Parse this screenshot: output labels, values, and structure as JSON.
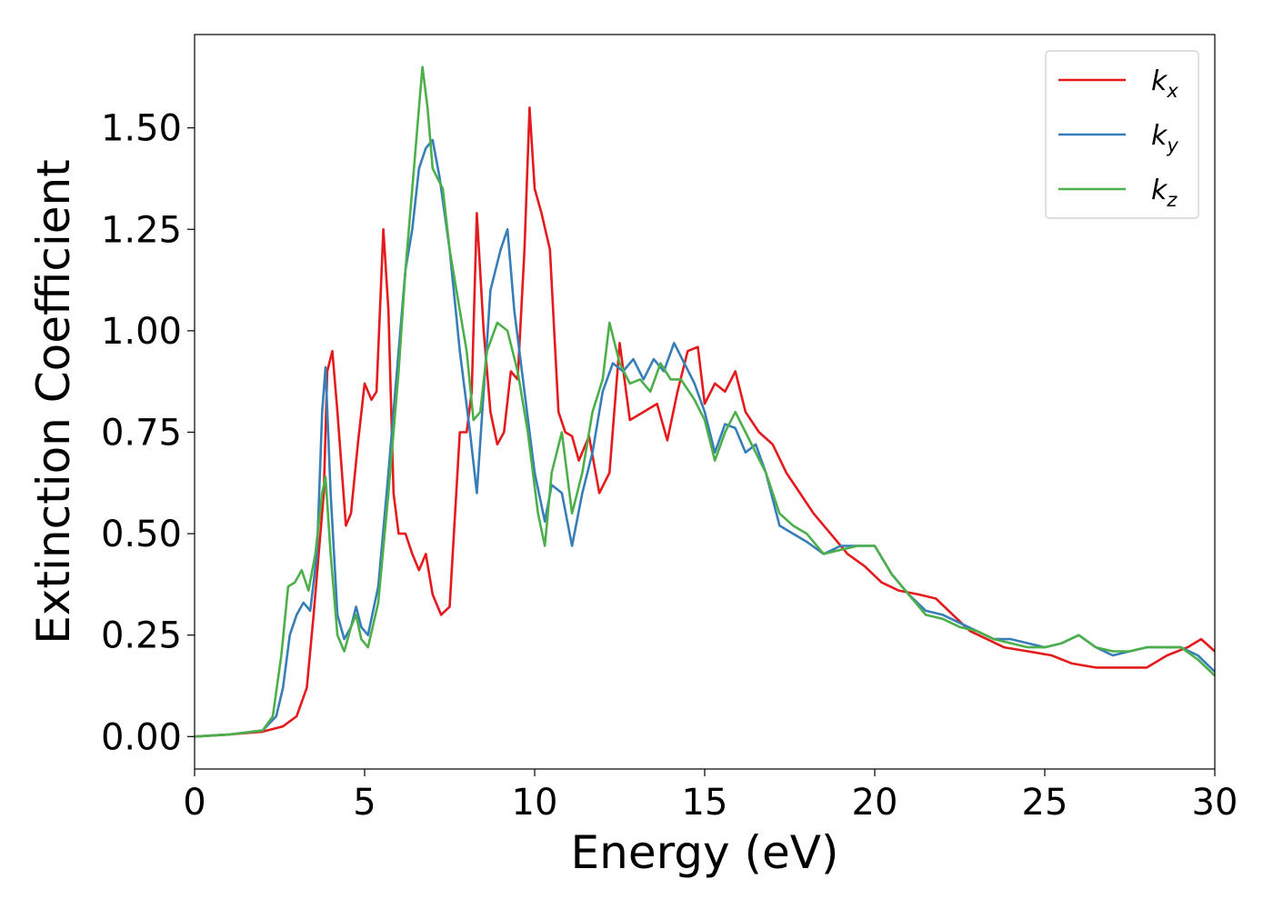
{
  "chart_data": {
    "type": "line",
    "title": "",
    "xlabel": "Energy (eV)",
    "ylabel": "Extinction Coefficient",
    "xlim": [
      0,
      30
    ],
    "ylim": [
      -0.08,
      1.73
    ],
    "xticks": [
      "0",
      "5",
      "10",
      "15",
      "20",
      "25",
      "30"
    ],
    "yticks": [
      "0.00",
      "0.25",
      "0.50",
      "0.75",
      "1.00",
      "1.25",
      "1.50"
    ],
    "grid": false,
    "legend_position": "top-right",
    "series": [
      {
        "name": "k_x",
        "label_base": "k",
        "label_sub": "x",
        "color": "#e41a1c",
        "points": [
          [
            0,
            0
          ],
          [
            1,
            0.005
          ],
          [
            2,
            0.012
          ],
          [
            2.6,
            0.025
          ],
          [
            3.0,
            0.05
          ],
          [
            3.3,
            0.12
          ],
          [
            3.5,
            0.3
          ],
          [
            3.8,
            0.6
          ],
          [
            3.9,
            0.9
          ],
          [
            4.05,
            0.95
          ],
          [
            4.2,
            0.8
          ],
          [
            4.45,
            0.52
          ],
          [
            4.6,
            0.55
          ],
          [
            4.8,
            0.72
          ],
          [
            5.0,
            0.87
          ],
          [
            5.2,
            0.83
          ],
          [
            5.35,
            0.85
          ],
          [
            5.55,
            1.25
          ],
          [
            5.7,
            1.05
          ],
          [
            5.85,
            0.6
          ],
          [
            6.0,
            0.5
          ],
          [
            6.2,
            0.5
          ],
          [
            6.4,
            0.45
          ],
          [
            6.6,
            0.41
          ],
          [
            6.8,
            0.45
          ],
          [
            7.0,
            0.35
          ],
          [
            7.25,
            0.3
          ],
          [
            7.5,
            0.32
          ],
          [
            7.8,
            0.75
          ],
          [
            8.0,
            0.75
          ],
          [
            8.15,
            0.85
          ],
          [
            8.3,
            1.29
          ],
          [
            8.5,
            1.0
          ],
          [
            8.7,
            0.8
          ],
          [
            8.9,
            0.72
          ],
          [
            9.1,
            0.75
          ],
          [
            9.3,
            0.9
          ],
          [
            9.5,
            0.88
          ],
          [
            9.7,
            1.2
          ],
          [
            9.85,
            1.55
          ],
          [
            10.0,
            1.35
          ],
          [
            10.2,
            1.29
          ],
          [
            10.45,
            1.2
          ],
          [
            10.7,
            0.8
          ],
          [
            10.9,
            0.75
          ],
          [
            11.1,
            0.74
          ],
          [
            11.3,
            0.68
          ],
          [
            11.6,
            0.74
          ],
          [
            11.9,
            0.6
          ],
          [
            12.2,
            0.65
          ],
          [
            12.5,
            0.97
          ],
          [
            12.8,
            0.78
          ],
          [
            13.2,
            0.8
          ],
          [
            13.6,
            0.82
          ],
          [
            13.9,
            0.73
          ],
          [
            14.2,
            0.85
          ],
          [
            14.5,
            0.95
          ],
          [
            14.8,
            0.96
          ],
          [
            15.0,
            0.82
          ],
          [
            15.3,
            0.87
          ],
          [
            15.6,
            0.85
          ],
          [
            15.9,
            0.9
          ],
          [
            16.2,
            0.8
          ],
          [
            16.6,
            0.75
          ],
          [
            17.0,
            0.72
          ],
          [
            17.4,
            0.65
          ],
          [
            17.8,
            0.6
          ],
          [
            18.2,
            0.55
          ],
          [
            18.7,
            0.5
          ],
          [
            19.2,
            0.45
          ],
          [
            19.7,
            0.42
          ],
          [
            20.2,
            0.38
          ],
          [
            20.7,
            0.36
          ],
          [
            21.3,
            0.35
          ],
          [
            21.8,
            0.34
          ],
          [
            22.3,
            0.3
          ],
          [
            22.8,
            0.26
          ],
          [
            23.3,
            0.24
          ],
          [
            23.8,
            0.22
          ],
          [
            24.5,
            0.21
          ],
          [
            25.2,
            0.2
          ],
          [
            25.8,
            0.18
          ],
          [
            26.5,
            0.17
          ],
          [
            27.2,
            0.17
          ],
          [
            28.0,
            0.17
          ],
          [
            28.6,
            0.2
          ],
          [
            29.2,
            0.22
          ],
          [
            29.6,
            0.24
          ],
          [
            30,
            0.21
          ]
        ]
      },
      {
        "name": "k_y",
        "label_base": "k",
        "label_sub": "y",
        "color": "#377eb8",
        "points": [
          [
            0,
            0
          ],
          [
            1,
            0.005
          ],
          [
            2,
            0.015
          ],
          [
            2.4,
            0.05
          ],
          [
            2.6,
            0.12
          ],
          [
            2.8,
            0.25
          ],
          [
            3.0,
            0.3
          ],
          [
            3.2,
            0.33
          ],
          [
            3.4,
            0.31
          ],
          [
            3.6,
            0.45
          ],
          [
            3.75,
            0.8
          ],
          [
            3.85,
            0.91
          ],
          [
            4.0,
            0.6
          ],
          [
            4.2,
            0.3
          ],
          [
            4.4,
            0.24
          ],
          [
            4.6,
            0.27
          ],
          [
            4.75,
            0.32
          ],
          [
            4.9,
            0.27
          ],
          [
            5.1,
            0.25
          ],
          [
            5.4,
            0.37
          ],
          [
            5.7,
            0.65
          ],
          [
            6.0,
            0.95
          ],
          [
            6.2,
            1.15
          ],
          [
            6.4,
            1.25
          ],
          [
            6.6,
            1.4
          ],
          [
            6.8,
            1.45
          ],
          [
            7.0,
            1.47
          ],
          [
            7.2,
            1.38
          ],
          [
            7.5,
            1.2
          ],
          [
            7.8,
            0.95
          ],
          [
            8.1,
            0.75
          ],
          [
            8.3,
            0.6
          ],
          [
            8.5,
            0.85
          ],
          [
            8.7,
            1.1
          ],
          [
            9.0,
            1.2
          ],
          [
            9.2,
            1.25
          ],
          [
            9.4,
            1.05
          ],
          [
            9.7,
            0.85
          ],
          [
            10.0,
            0.65
          ],
          [
            10.3,
            0.53
          ],
          [
            10.5,
            0.62
          ],
          [
            10.8,
            0.6
          ],
          [
            11.1,
            0.47
          ],
          [
            11.4,
            0.6
          ],
          [
            11.7,
            0.7
          ],
          [
            12.0,
            0.85
          ],
          [
            12.3,
            0.92
          ],
          [
            12.6,
            0.9
          ],
          [
            12.9,
            0.93
          ],
          [
            13.2,
            0.88
          ],
          [
            13.5,
            0.93
          ],
          [
            13.8,
            0.9
          ],
          [
            14.1,
            0.97
          ],
          [
            14.4,
            0.92
          ],
          [
            14.7,
            0.87
          ],
          [
            15.0,
            0.8
          ],
          [
            15.3,
            0.7
          ],
          [
            15.6,
            0.77
          ],
          [
            15.9,
            0.76
          ],
          [
            16.2,
            0.7
          ],
          [
            16.5,
            0.72
          ],
          [
            16.8,
            0.65
          ],
          [
            17.2,
            0.52
          ],
          [
            17.6,
            0.5
          ],
          [
            18.0,
            0.48
          ],
          [
            18.5,
            0.45
          ],
          [
            19.0,
            0.47
          ],
          [
            19.5,
            0.47
          ],
          [
            20.0,
            0.47
          ],
          [
            20.5,
            0.4
          ],
          [
            21.0,
            0.35
          ],
          [
            21.5,
            0.31
          ],
          [
            22.0,
            0.3
          ],
          [
            22.5,
            0.28
          ],
          [
            23.0,
            0.26
          ],
          [
            23.5,
            0.24
          ],
          [
            24.0,
            0.24
          ],
          [
            24.5,
            0.23
          ],
          [
            25.0,
            0.22
          ],
          [
            25.5,
            0.23
          ],
          [
            26.0,
            0.25
          ],
          [
            26.5,
            0.22
          ],
          [
            27.0,
            0.2
          ],
          [
            27.5,
            0.21
          ],
          [
            28.0,
            0.22
          ],
          [
            28.5,
            0.22
          ],
          [
            29.0,
            0.22
          ],
          [
            29.5,
            0.2
          ],
          [
            30,
            0.16
          ]
        ]
      },
      {
        "name": "k_z",
        "label_base": "k",
        "label_sub": "z",
        "color": "#4daf4a",
        "points": [
          [
            0,
            0
          ],
          [
            1,
            0.005
          ],
          [
            2,
            0.015
          ],
          [
            2.3,
            0.05
          ],
          [
            2.55,
            0.2
          ],
          [
            2.75,
            0.37
          ],
          [
            2.95,
            0.38
          ],
          [
            3.15,
            0.41
          ],
          [
            3.35,
            0.36
          ],
          [
            3.55,
            0.45
          ],
          [
            3.75,
            0.6
          ],
          [
            3.85,
            0.64
          ],
          [
            4.0,
            0.45
          ],
          [
            4.2,
            0.25
          ],
          [
            4.4,
            0.21
          ],
          [
            4.6,
            0.27
          ],
          [
            4.75,
            0.3
          ],
          [
            4.9,
            0.24
          ],
          [
            5.1,
            0.22
          ],
          [
            5.4,
            0.33
          ],
          [
            5.7,
            0.6
          ],
          [
            6.0,
            0.9
          ],
          [
            6.2,
            1.15
          ],
          [
            6.4,
            1.35
          ],
          [
            6.6,
            1.55
          ],
          [
            6.7,
            1.65
          ],
          [
            6.85,
            1.55
          ],
          [
            7.0,
            1.4
          ],
          [
            7.3,
            1.35
          ],
          [
            7.5,
            1.2
          ],
          [
            7.8,
            1.05
          ],
          [
            8.0,
            0.95
          ],
          [
            8.2,
            0.78
          ],
          [
            8.4,
            0.8
          ],
          [
            8.6,
            0.95
          ],
          [
            8.9,
            1.02
          ],
          [
            9.2,
            1.0
          ],
          [
            9.5,
            0.9
          ],
          [
            9.8,
            0.75
          ],
          [
            10.1,
            0.55
          ],
          [
            10.3,
            0.47
          ],
          [
            10.5,
            0.65
          ],
          [
            10.8,
            0.75
          ],
          [
            11.1,
            0.55
          ],
          [
            11.4,
            0.65
          ],
          [
            11.7,
            0.8
          ],
          [
            12.0,
            0.88
          ],
          [
            12.2,
            1.02
          ],
          [
            12.5,
            0.92
          ],
          [
            12.8,
            0.87
          ],
          [
            13.1,
            0.88
          ],
          [
            13.4,
            0.85
          ],
          [
            13.7,
            0.92
          ],
          [
            14.0,
            0.88
          ],
          [
            14.3,
            0.88
          ],
          [
            14.7,
            0.83
          ],
          [
            15.0,
            0.78
          ],
          [
            15.3,
            0.68
          ],
          [
            15.6,
            0.75
          ],
          [
            15.9,
            0.8
          ],
          [
            16.2,
            0.75
          ],
          [
            16.5,
            0.7
          ],
          [
            16.8,
            0.65
          ],
          [
            17.2,
            0.55
          ],
          [
            17.6,
            0.52
          ],
          [
            18.0,
            0.5
          ],
          [
            18.5,
            0.45
          ],
          [
            19.0,
            0.46
          ],
          [
            19.5,
            0.47
          ],
          [
            20.0,
            0.47
          ],
          [
            20.5,
            0.4
          ],
          [
            21.0,
            0.35
          ],
          [
            21.5,
            0.3
          ],
          [
            22.0,
            0.29
          ],
          [
            22.5,
            0.27
          ],
          [
            23.0,
            0.26
          ],
          [
            23.5,
            0.24
          ],
          [
            24.0,
            0.23
          ],
          [
            24.5,
            0.22
          ],
          [
            25.0,
            0.22
          ],
          [
            25.5,
            0.23
          ],
          [
            26.0,
            0.25
          ],
          [
            26.5,
            0.22
          ],
          [
            27.0,
            0.21
          ],
          [
            27.5,
            0.21
          ],
          [
            28.0,
            0.22
          ],
          [
            28.5,
            0.22
          ],
          [
            29.0,
            0.22
          ],
          [
            29.5,
            0.19
          ],
          [
            30,
            0.15
          ]
        ]
      }
    ]
  }
}
